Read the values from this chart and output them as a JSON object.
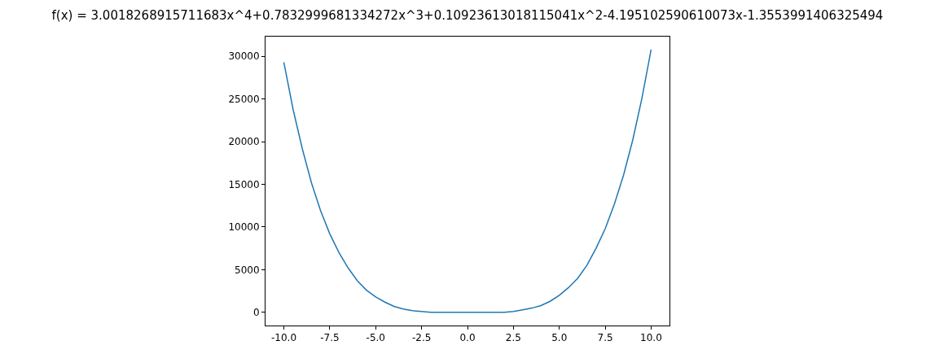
{
  "chart_data": {
    "type": "line",
    "title": "f(x) = 3.0018268915711683x^4+0.7832999681334272x^3+0.10923613018115041x^2-4.195102590610073x-1.3553991406325494",
    "x": [
      -10,
      -9.5,
      -9,
      -8.5,
      -8,
      -7.5,
      -7,
      -6.5,
      -6,
      -5.5,
      -5,
      -4.5,
      -4,
      -3.5,
      -3,
      -2.5,
      -2,
      -1.5,
      -1,
      -0.5,
      0,
      0.5,
      1,
      1.5,
      2,
      2.5,
      3,
      3.5,
      4,
      4.5,
      5,
      5.5,
      6,
      6.5,
      7,
      7.5,
      8,
      8.5,
      9,
      9.5,
      10
    ],
    "series": [
      {
        "color": "#1f77b4",
        "values": [
          29300,
          23800,
          19200,
          15200,
          11900,
          9200,
          7000,
          5200,
          3700,
          2600,
          1800,
          1200,
          700,
          400,
          200,
          100,
          0,
          0,
          0,
          0,
          0,
          0,
          0,
          0,
          0,
          100,
          300,
          500,
          800,
          1300,
          2000,
          2900,
          4000,
          5500,
          7500,
          9800,
          12700,
          16100,
          20200,
          25100,
          30800
        ]
      }
    ],
    "xlim": [
      -11,
      11
    ],
    "xticks": [
      {
        "value": -10,
        "label": "-10.0"
      },
      {
        "value": -7.5,
        "label": "-7.5"
      },
      {
        "value": -5,
        "label": "-5.0"
      },
      {
        "value": -2.5,
        "label": "-2.5"
      },
      {
        "value": 0,
        "label": "0.0"
      },
      {
        "value": 2.5,
        "label": "2.5"
      },
      {
        "value": 5,
        "label": "5.0"
      },
      {
        "value": 7.5,
        "label": "7.5"
      },
      {
        "value": 10,
        "label": "10.0"
      }
    ],
    "ylim": [
      -1540,
      32310
    ],
    "yticks": [
      0,
      5000,
      10000,
      15000,
      20000,
      25000,
      30000
    ],
    "marker": "none",
    "line_style": "solid"
  }
}
